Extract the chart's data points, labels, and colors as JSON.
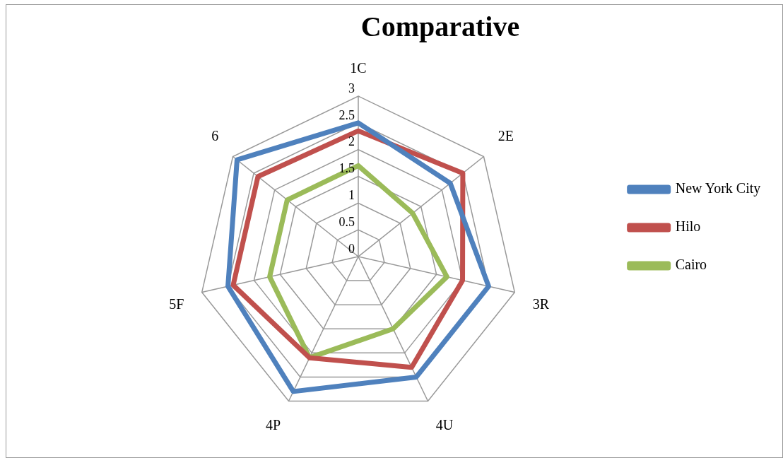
{
  "chart_data": {
    "type": "radar",
    "title": "Comparative",
    "categories": [
      "1C",
      "2E",
      "3R",
      "4U",
      "4P",
      "5F",
      "6"
    ],
    "series": [
      {
        "name": "New York City",
        "color": "#4f81bd",
        "values": [
          2.5,
          2.2,
          2.5,
          2.5,
          2.8,
          2.5,
          2.9
        ]
      },
      {
        "name": "Hilo",
        "color": "#c0504d",
        "values": [
          2.35,
          2.5,
          2,
          2.3,
          2.1,
          2.4,
          2.4
        ]
      },
      {
        "name": "Cairo",
        "color": "#9bbb59",
        "values": [
          1.7,
          1.3,
          1.7,
          1.5,
          2.1,
          1.7,
          1.7
        ]
      }
    ],
    "ylim": [
      0,
      3
    ],
    "yticks": [
      0,
      0.5,
      1,
      1.5,
      2,
      2.5,
      3
    ],
    "grid": true,
    "legend": "right",
    "marker": "none"
  }
}
